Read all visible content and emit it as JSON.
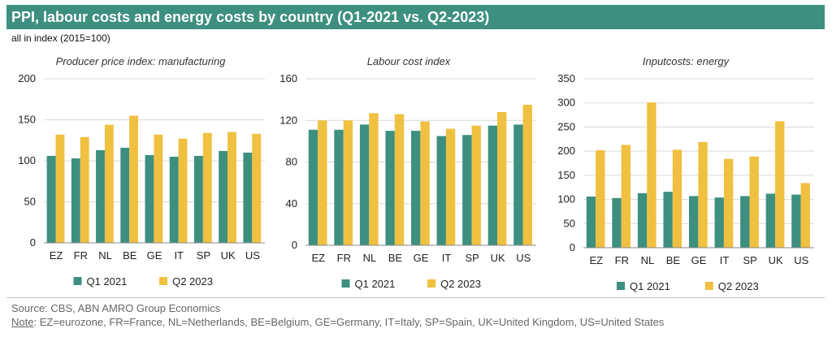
{
  "header": {
    "title": "PPI, labour costs and energy costs by country (Q1-2021 vs. Q2-2023)",
    "subtitle": "all in index (2015=100)"
  },
  "colors": {
    "q1": "#3d8f80",
    "q2": "#f0c040",
    "title_bg": "#3d8f80",
    "grid": "#d9d9d9"
  },
  "chart_data": [
    {
      "type": "bar",
      "title": "Producer price index: manufacturing",
      "categories": [
        "EZ",
        "FR",
        "NL",
        "BE",
        "GE",
        "IT",
        "SP",
        "UK",
        "US"
      ],
      "series": [
        {
          "name": "Q1 2021",
          "values": [
            106,
            103,
            113,
            116,
            107,
            105,
            106,
            112,
            110
          ]
        },
        {
          "name": "Q2 2023",
          "values": [
            132,
            129,
            144,
            155,
            132,
            127,
            134,
            135,
            133
          ]
        }
      ],
      "ylim": [
        0,
        200
      ],
      "yticks": [
        0,
        50,
        100,
        150,
        200
      ],
      "grid": true,
      "legend": "bottom"
    },
    {
      "type": "bar",
      "title": "Labour cost index",
      "categories": [
        "EZ",
        "FR",
        "NL",
        "BE",
        "GE",
        "IT",
        "SP",
        "UK",
        "US"
      ],
      "series": [
        {
          "name": "Q1 2021",
          "values": [
            111,
            111,
            116,
            110,
            110,
            105,
            106,
            115,
            116
          ]
        },
        {
          "name": "Q2 2023",
          "values": [
            120,
            120,
            127,
            126,
            119,
            112,
            115,
            128,
            135
          ]
        }
      ],
      "ylim": [
        0,
        160
      ],
      "yticks": [
        0,
        40,
        80,
        120,
        160
      ],
      "grid": true,
      "legend": "bottom"
    },
    {
      "type": "bar",
      "title": "Inputcosts: energy",
      "categories": [
        "EZ",
        "FR",
        "NL",
        "BE",
        "GE",
        "IT",
        "SP",
        "UK",
        "US"
      ],
      "series": [
        {
          "name": "Q1 2021",
          "values": [
            106,
            103,
            113,
            116,
            107,
            104,
            107,
            112,
            110
          ]
        },
        {
          "name": "Q2 2023",
          "values": [
            202,
            213,
            301,
            203,
            219,
            184,
            189,
            262,
            134
          ]
        }
      ],
      "ylim": [
        0,
        350
      ],
      "yticks": [
        0,
        50,
        100,
        150,
        200,
        250,
        300,
        350
      ],
      "grid": true,
      "legend": "bottom"
    }
  ],
  "footer": {
    "source": "Source: CBS, ABN AMRO Group Economics",
    "note_label": "Note",
    "note_text": ": EZ=eurozone, FR=France, NL=Netherlands, BE=Belgium, GE=Germany, IT=Italy, SP=Spain, UK=United Kingdom, US=United States"
  }
}
